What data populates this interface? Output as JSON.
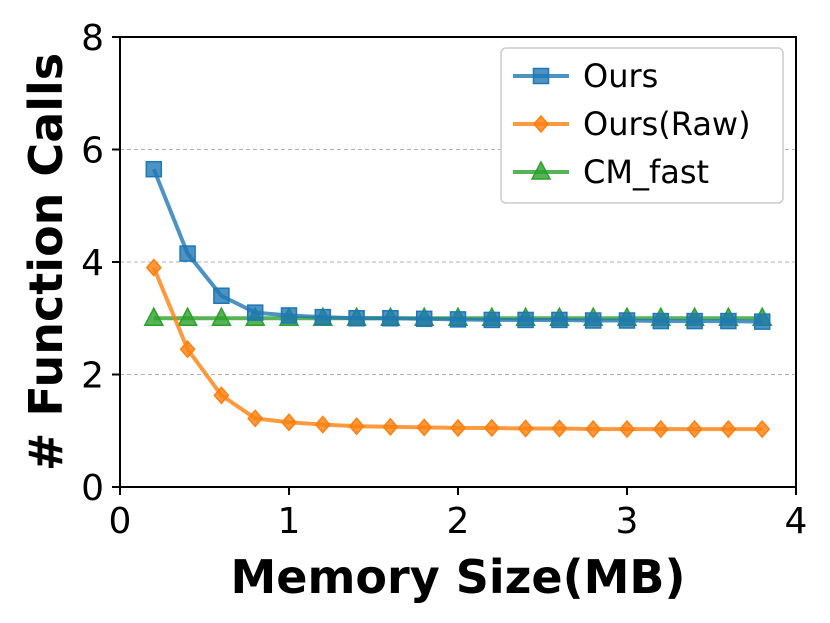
{
  "chart_data": {
    "type": "line",
    "title": "",
    "xlabel": "Memory Size(MB)",
    "ylabel": "# Function Calls",
    "xlim": [
      0,
      4
    ],
    "ylim": [
      0,
      8
    ],
    "xticks": [
      "0",
      "1",
      "2",
      "3",
      "4"
    ],
    "yticks": [
      "0",
      "2",
      "4",
      "6",
      "8"
    ],
    "grid": "horizontal dashed at y ticks",
    "legend_position": "top-right",
    "x": [
      0.2,
      0.4,
      0.6,
      0.8,
      1.0,
      1.2,
      1.4,
      1.6,
      1.8,
      2.0,
      2.2,
      2.4,
      2.6,
      2.8,
      3.0,
      3.2,
      3.4,
      3.6,
      3.8
    ],
    "series": [
      {
        "name": "Ours",
        "color": "#1f77b4",
        "marker": "square",
        "values": [
          5.65,
          4.15,
          3.4,
          3.1,
          3.05,
          3.02,
          3.0,
          3.0,
          2.99,
          2.98,
          2.97,
          2.97,
          2.97,
          2.96,
          2.96,
          2.95,
          2.95,
          2.95,
          2.94
        ]
      },
      {
        "name": "Ours(Raw)",
        "color": "#ff7f0e",
        "marker": "diamond",
        "values": [
          3.9,
          2.45,
          1.63,
          1.22,
          1.15,
          1.11,
          1.08,
          1.07,
          1.06,
          1.05,
          1.05,
          1.04,
          1.04,
          1.03,
          1.03,
          1.03,
          1.03,
          1.03,
          1.03
        ]
      },
      {
        "name": "CM_fast",
        "color": "#2ca02c",
        "marker": "triangle",
        "values": [
          3.0,
          3.0,
          3.0,
          3.0,
          3.0,
          3.0,
          3.0,
          3.0,
          3.0,
          3.0,
          3.0,
          3.0,
          3.0,
          3.0,
          3.0,
          3.0,
          3.0,
          3.0,
          3.0
        ]
      }
    ]
  }
}
